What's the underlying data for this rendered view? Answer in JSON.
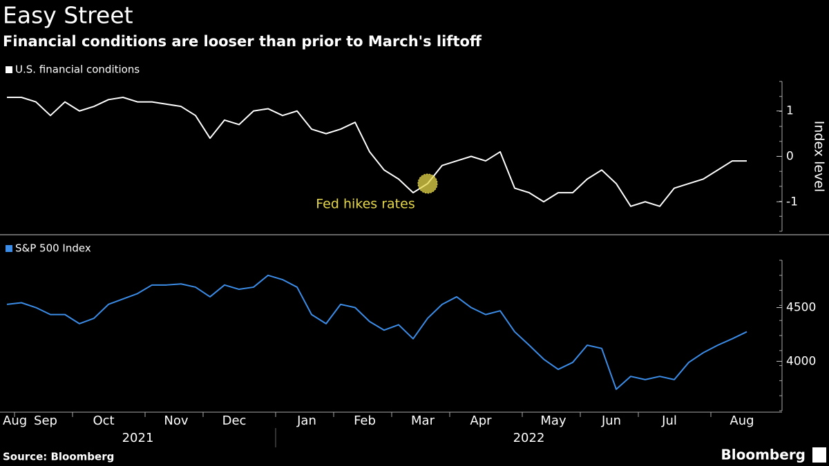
{
  "title": "Easy Street",
  "subtitle": "Financial conditions are looser than prior to March's liftoff",
  "source": "Source: Bloomberg",
  "brand": "Bloomberg",
  "years": [
    "2021",
    "2022"
  ],
  "chart_data": [
    {
      "type": "line",
      "y_label": "Index level",
      "annotations": [
        "Fed hikes rates"
      ],
      "categories": [
        "Aug",
        "Sep",
        null,
        null,
        null,
        "Oct",
        null,
        null,
        null,
        null,
        "Nov",
        null,
        null,
        null,
        "Dec",
        null,
        null,
        null,
        null,
        "Jan",
        null,
        null,
        null,
        "Feb",
        null,
        null,
        null,
        "Mar",
        null,
        null,
        null,
        "Apr",
        null,
        null,
        null,
        null,
        "May",
        null,
        null,
        null,
        "Jun",
        null,
        null,
        null,
        "Jul",
        null,
        null,
        null,
        null,
        "Aug",
        null,
        null
      ],
      "series": [
        {
          "name": "U.S. financial conditions",
          "color": "#ffffff",
          "values": [
            1.3,
            1.3,
            1.2,
            0.9,
            1.2,
            1.0,
            1.1,
            1.25,
            1.3,
            1.2,
            1.2,
            1.15,
            1.1,
            0.9,
            0.4,
            0.8,
            0.7,
            1.0,
            1.05,
            0.9,
            1.0,
            0.6,
            0.5,
            0.6,
            0.75,
            0.1,
            -0.3,
            -0.5,
            -0.8,
            -0.6,
            -0.2,
            -0.1,
            0.0,
            -0.1,
            0.1,
            -0.7,
            -0.8,
            -1.0,
            -0.8,
            -0.8,
            -0.5,
            -0.3,
            -0.6,
            -1.1,
            -1.0,
            -1.1,
            -0.7,
            -0.6,
            -0.5,
            -0.3,
            -0.1,
            -0.1
          ]
        }
      ],
      "ylim": [
        -1.65,
        1.65
      ],
      "yticks": [
        -1,
        0,
        1
      ]
    },
    {
      "type": "line",
      "categories": [
        "Aug",
        "Sep",
        null,
        null,
        null,
        "Oct",
        null,
        null,
        null,
        null,
        "Nov",
        null,
        null,
        null,
        "Dec",
        null,
        null,
        null,
        null,
        "Jan",
        null,
        null,
        null,
        "Feb",
        null,
        null,
        null,
        "Mar",
        null,
        null,
        null,
        "Apr",
        null,
        null,
        null,
        null,
        "May",
        null,
        null,
        null,
        "Jun",
        null,
        null,
        null,
        "Jul",
        null,
        null,
        null,
        null,
        "Aug",
        null,
        null
      ],
      "series": [
        {
          "name": "S&P 500 Index",
          "color": "#3b8de8",
          "values": [
            4530,
            4545,
            4500,
            4435,
            4435,
            4350,
            4400,
            4530,
            4580,
            4630,
            4710,
            4710,
            4720,
            4690,
            4600,
            4710,
            4670,
            4690,
            4800,
            4760,
            4690,
            4435,
            4350,
            4530,
            4500,
            4370,
            4290,
            4340,
            4210,
            4400,
            4530,
            4600,
            4500,
            4435,
            4470,
            4275,
            4150,
            4020,
            3925,
            3990,
            4150,
            4120,
            3740,
            3860,
            3830,
            3860,
            3830,
            3990,
            4080,
            4150,
            4210,
            4275
          ]
        }
      ],
      "ylim": [
        3540,
        4940
      ],
      "yticks": [
        4000,
        4500
      ]
    }
  ]
}
